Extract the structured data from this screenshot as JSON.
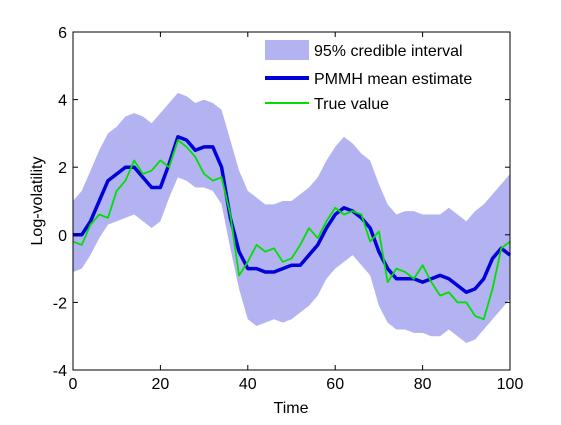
{
  "chart_data": {
    "type": "line",
    "title": "",
    "xlabel": "Time",
    "ylabel": "Log-volatility",
    "xlim": [
      0,
      100
    ],
    "ylim": [
      -4,
      6
    ],
    "xticks": [
      0,
      20,
      40,
      60,
      80,
      100
    ],
    "yticks": [
      -4,
      -2,
      0,
      2,
      4,
      6
    ],
    "grid": false,
    "legend_position": "top-right",
    "colors": {
      "band": "#b3b3f2",
      "mean": "#0000d9",
      "truth": "#00e000"
    },
    "series": [
      {
        "name": "95% credible interval",
        "kind": "band",
        "x": [
          0,
          2,
          4,
          6,
          8,
          10,
          12,
          14,
          16,
          18,
          20,
          22,
          24,
          26,
          28,
          30,
          32,
          34,
          36,
          38,
          40,
          42,
          44,
          46,
          48,
          50,
          52,
          54,
          56,
          58,
          60,
          62,
          64,
          66,
          68,
          70,
          72,
          74,
          76,
          78,
          80,
          82,
          84,
          86,
          88,
          90,
          92,
          94,
          96,
          98,
          100
        ],
        "upper": [
          1.0,
          1.3,
          1.9,
          2.5,
          3.0,
          3.2,
          3.5,
          3.6,
          3.5,
          3.3,
          3.6,
          3.9,
          4.2,
          4.1,
          3.9,
          4.0,
          3.9,
          3.7,
          2.8,
          1.9,
          1.3,
          1.1,
          0.9,
          0.9,
          1.0,
          1.0,
          1.2,
          1.4,
          1.7,
          2.2,
          2.6,
          2.9,
          2.7,
          2.4,
          2.2,
          1.5,
          0.9,
          0.6,
          0.7,
          0.7,
          0.6,
          0.6,
          0.6,
          0.8,
          0.6,
          0.4,
          0.7,
          0.9,
          1.2,
          1.5,
          1.8
        ],
        "lower": [
          -1.1,
          -1.0,
          -0.6,
          -0.1,
          0.3,
          0.4,
          0.5,
          0.6,
          0.4,
          0.2,
          0.4,
          1.1,
          1.7,
          1.6,
          1.4,
          1.4,
          1.3,
          0.9,
          -0.4,
          -1.6,
          -2.5,
          -2.7,
          -2.6,
          -2.5,
          -2.6,
          -2.5,
          -2.3,
          -2.1,
          -1.8,
          -1.3,
          -1.0,
          -0.8,
          -0.6,
          -0.9,
          -1.2,
          -2.1,
          -2.6,
          -2.8,
          -2.8,
          -2.9,
          -2.9,
          -3.0,
          -3.0,
          -2.8,
          -3.0,
          -3.2,
          -3.1,
          -2.8,
          -2.5,
          -2.2,
          -1.9
        ]
      },
      {
        "name": "PMMH mean estimate",
        "kind": "line",
        "x": [
          0,
          2,
          4,
          6,
          8,
          10,
          12,
          14,
          16,
          18,
          20,
          22,
          24,
          26,
          28,
          30,
          32,
          34,
          36,
          38,
          40,
          42,
          44,
          46,
          48,
          50,
          52,
          54,
          56,
          58,
          60,
          62,
          64,
          66,
          68,
          70,
          72,
          74,
          76,
          78,
          80,
          82,
          84,
          86,
          88,
          90,
          92,
          94,
          96,
          98,
          100
        ],
        "values": [
          0.0,
          0.0,
          0.4,
          1.0,
          1.6,
          1.8,
          2.0,
          2.0,
          1.7,
          1.4,
          1.4,
          2.1,
          2.9,
          2.8,
          2.5,
          2.6,
          2.6,
          2.0,
          0.5,
          -0.5,
          -1.0,
          -1.0,
          -1.1,
          -1.1,
          -1.0,
          -0.9,
          -0.9,
          -0.6,
          -0.3,
          0.2,
          0.6,
          0.8,
          0.7,
          0.5,
          0.2,
          -0.5,
          -1.0,
          -1.3,
          -1.3,
          -1.3,
          -1.4,
          -1.3,
          -1.2,
          -1.3,
          -1.5,
          -1.7,
          -1.6,
          -1.3,
          -0.7,
          -0.4,
          -0.6
        ]
      },
      {
        "name": "True value",
        "kind": "line",
        "x": [
          0,
          2,
          4,
          6,
          8,
          10,
          12,
          14,
          16,
          18,
          20,
          22,
          24,
          26,
          28,
          30,
          32,
          34,
          36,
          38,
          40,
          42,
          44,
          46,
          48,
          50,
          52,
          54,
          56,
          58,
          60,
          62,
          64,
          66,
          68,
          70,
          72,
          74,
          76,
          78,
          80,
          82,
          84,
          86,
          88,
          90,
          92,
          94,
          96,
          98,
          100
        ],
        "values": [
          -0.2,
          -0.3,
          0.3,
          0.6,
          0.5,
          1.3,
          1.6,
          2.2,
          1.8,
          1.9,
          2.2,
          2.0,
          2.8,
          2.6,
          2.3,
          1.8,
          1.6,
          1.7,
          0.6,
          -1.2,
          -0.8,
          -0.3,
          -0.5,
          -0.4,
          -0.8,
          -0.7,
          -0.3,
          0.2,
          -0.1,
          0.4,
          0.8,
          0.6,
          0.7,
          0.6,
          -0.2,
          0.1,
          -1.4,
          -1.0,
          -1.1,
          -1.3,
          -0.9,
          -1.4,
          -1.8,
          -1.7,
          -2.0,
          -2.0,
          -2.4,
          -2.5,
          -1.6,
          -0.4,
          -0.2
        ]
      }
    ]
  }
}
